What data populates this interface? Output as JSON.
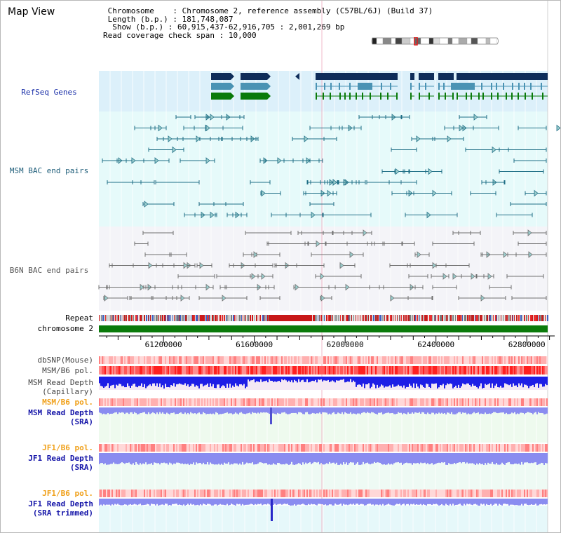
{
  "window": {
    "title": "Map View"
  },
  "info": {
    "chromosome_key": "Chromosome",
    "chromosome_val": "Chromosome 2, reference assembly (C57BL/6J) (Build 37)",
    "length_key": "Length (b.p.)",
    "length_val": "181,748,087",
    "show_key": "Show (b.p.)",
    "show_val": "60,915,437-62,916,705 : 2,001,269 bp",
    "coverage_key": "Read coverage check span",
    "coverage_val": "10,000"
  },
  "tracks": {
    "refseq": "RefSeq Genes",
    "msm_bac": "MSM BAC end pairs",
    "b6n_bac": "B6N BAC end pairs",
    "repeat": "Repeat",
    "chromosome": "chromosome 2",
    "dbsnp": "dbSNP(Mouse)",
    "msm_pol": "MSM/B6 pol.",
    "msm_cap_1": "MSM Read Depth",
    "msm_cap_2": "(Capillary)",
    "msm_pol_sra": "MSM/B6 pol.",
    "msm_sra_1": "MSM Read Depth",
    "msm_sra_2": "(SRA)",
    "jf1_pol": "JF1/B6 pol.",
    "jf1_sra_1": "JF1 Read Depth",
    "jf1_sra_2": "(SRA)",
    "jf1_pol_trim": "JF1/B6 pol.",
    "jf1_trim_1": "JF1 Read Depth",
    "jf1_trim_2": "(SRA trimmed)"
  },
  "axis": {
    "ticks": [
      "61200000",
      "61600000",
      "62000000",
      "62400000",
      "62800000"
    ],
    "tick_values": [
      61200000,
      61600000,
      62000000,
      62400000,
      62800000
    ],
    "range": [
      60915437,
      62916705
    ]
  },
  "colors": {
    "refseq_bg": "#dcf0fa",
    "msm_bg": "#e6fafa",
    "b6n_bg": "#f4f4f8",
    "gene_dark": "#0f2d5a",
    "gene_mid": "#4a93b4",
    "gene_green": "#0a7a0a",
    "msm_pair": "#1f6e85",
    "b6n_pair": "#707070",
    "chromosome": "#0a7a0a",
    "depth_cap": "#1e1ee6",
    "depth_sra": "#8a8cf0",
    "pol_red": "#ff3a3a"
  }
}
